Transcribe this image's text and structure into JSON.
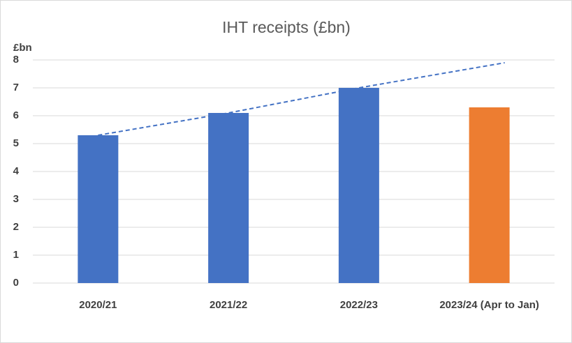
{
  "chart_data": {
    "type": "bar",
    "title": "IHT receipts (£bn)",
    "y_label": "£bn",
    "categories": [
      "2020/21",
      "2021/22",
      "2022/23",
      "2023/24 (Apr to Jan)"
    ],
    "values": [
      5.3,
      6.1,
      7.0,
      6.3
    ],
    "colors": [
      "#4472c4",
      "#4472c4",
      "#4472c4",
      "#ed7d31"
    ],
    "trend": {
      "values": [
        5.3,
        6.1,
        7.0,
        7.9
      ],
      "color": "#4472c4",
      "dashed": true
    },
    "ylim": [
      0,
      8
    ],
    "yticks": [
      0,
      1,
      2,
      3,
      4,
      5,
      6,
      7,
      8
    ],
    "grid": true
  }
}
